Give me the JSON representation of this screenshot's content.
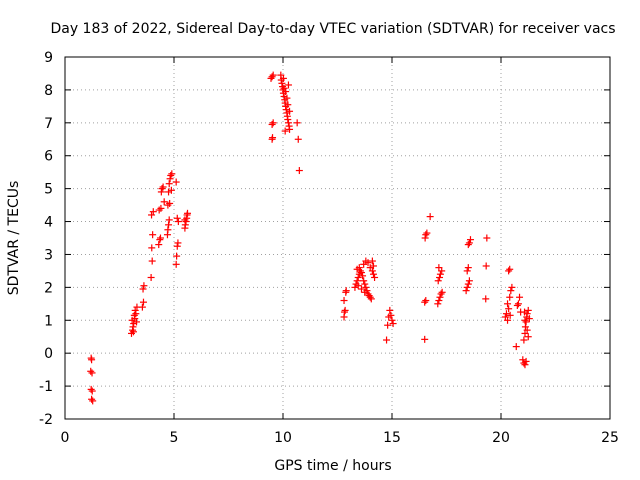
{
  "chart_data": {
    "type": "scatter",
    "title": "Day 183 of 2022, Sidereal Day-to-day VTEC variation (SDTVAR) for receiver vacs",
    "xlabel": "GPS time / hours",
    "ylabel": "SDTVAR / TECUs",
    "xlim": [
      0,
      25
    ],
    "ylim": [
      -2,
      9
    ],
    "xticks": [
      0,
      5,
      10,
      15,
      20,
      25
    ],
    "yticks": [
      -2,
      -1,
      0,
      1,
      2,
      3,
      4,
      5,
      6,
      7,
      8,
      9
    ],
    "xtick_labels": [
      "0",
      "5",
      "10",
      "15",
      "20",
      "25"
    ],
    "ytick_labels": [
      "-2",
      "-1",
      "0",
      "1",
      "2",
      "3",
      "4",
      "5",
      "6",
      "7",
      "8",
      "9"
    ],
    "grid": true,
    "marker": "+",
    "color": "#ff0000",
    "series": [
      {
        "name": "SDTVAR",
        "points": [
          [
            1.2,
            -0.15
          ],
          [
            1.22,
            -0.2
          ],
          [
            1.18,
            -0.55
          ],
          [
            1.24,
            -0.6
          ],
          [
            1.2,
            -1.1
          ],
          [
            1.25,
            -1.15
          ],
          [
            1.22,
            -1.4
          ],
          [
            1.27,
            -1.45
          ],
          [
            3.05,
            0.6
          ],
          [
            3.1,
            0.7
          ],
          [
            3.12,
            0.8
          ],
          [
            3.15,
            0.9
          ],
          [
            3.08,
            1.0
          ],
          [
            3.2,
            1.05
          ],
          [
            3.18,
            1.15
          ],
          [
            3.25,
            1.2
          ],
          [
            3.22,
            1.3
          ],
          [
            3.3,
            1.4
          ],
          [
            3.28,
            0.95
          ],
          [
            3.14,
            0.65
          ],
          [
            3.55,
            1.4
          ],
          [
            3.6,
            1.55
          ],
          [
            3.58,
            1.95
          ],
          [
            3.62,
            2.05
          ],
          [
            3.95,
            2.3
          ],
          [
            4.0,
            2.8
          ],
          [
            3.98,
            3.2
          ],
          [
            4.02,
            3.6
          ],
          [
            3.97,
            4.2
          ],
          [
            4.05,
            4.3
          ],
          [
            4.3,
            3.3
          ],
          [
            4.35,
            3.45
          ],
          [
            4.38,
            3.5
          ],
          [
            4.32,
            4.35
          ],
          [
            4.4,
            4.4
          ],
          [
            4.42,
            4.9
          ],
          [
            4.45,
            5.0
          ],
          [
            4.5,
            5.05
          ],
          [
            4.55,
            4.6
          ],
          [
            4.7,
            3.6
          ],
          [
            4.72,
            3.75
          ],
          [
            4.75,
            3.9
          ],
          [
            4.78,
            4.05
          ],
          [
            4.72,
            4.5
          ],
          [
            4.8,
            4.55
          ],
          [
            4.75,
            4.9
          ],
          [
            4.78,
            5.15
          ],
          [
            4.82,
            5.3
          ],
          [
            4.85,
            5.4
          ],
          [
            4.9,
            5.45
          ],
          [
            4.88,
            4.95
          ],
          [
            5.1,
            2.7
          ],
          [
            5.12,
            2.95
          ],
          [
            5.15,
            3.25
          ],
          [
            5.18,
            3.35
          ],
          [
            5.2,
            4.0
          ],
          [
            5.15,
            4.1
          ],
          [
            5.1,
            5.2
          ],
          [
            5.5,
            3.8
          ],
          [
            5.52,
            3.9
          ],
          [
            5.55,
            4.0
          ],
          [
            5.58,
            4.1
          ],
          [
            5.6,
            4.2
          ],
          [
            5.62,
            4.25
          ],
          [
            5.5,
            4.05
          ],
          [
            9.5,
            6.5
          ],
          [
            9.52,
            6.55
          ],
          [
            9.5,
            6.95
          ],
          [
            9.55,
            7.0
          ],
          [
            9.45,
            8.35
          ],
          [
            9.5,
            8.4
          ],
          [
            9.55,
            8.45
          ],
          [
            9.9,
            8.45
          ],
          [
            9.92,
            8.3
          ],
          [
            9.95,
            8.2
          ],
          [
            9.98,
            8.1
          ],
          [
            10.0,
            8.0
          ],
          [
            10.02,
            7.9
          ],
          [
            10.05,
            7.8
          ],
          [
            10.08,
            7.7
          ],
          [
            10.1,
            7.6
          ],
          [
            10.12,
            7.5
          ],
          [
            10.15,
            7.4
          ],
          [
            10.18,
            7.3
          ],
          [
            10.2,
            7.2
          ],
          [
            10.22,
            7.1
          ],
          [
            10.25,
            7.0
          ],
          [
            10.28,
            6.9
          ],
          [
            10.3,
            6.8
          ],
          [
            10.1,
            6.75
          ],
          [
            10.02,
            8.35
          ],
          [
            10.05,
            8.05
          ],
          [
            10.12,
            7.95
          ],
          [
            10.18,
            7.75
          ],
          [
            10.22,
            7.55
          ],
          [
            10.3,
            7.35
          ],
          [
            10.25,
            8.15
          ],
          [
            10.65,
            7.0
          ],
          [
            10.7,
            6.5
          ],
          [
            10.75,
            5.55
          ],
          [
            12.8,
            1.1
          ],
          [
            12.82,
            1.25
          ],
          [
            12.85,
            1.3
          ],
          [
            12.8,
            1.6
          ],
          [
            12.88,
            1.85
          ],
          [
            12.9,
            1.9
          ],
          [
            13.3,
            2.0
          ],
          [
            13.35,
            2.1
          ],
          [
            13.4,
            2.2
          ],
          [
            13.45,
            2.3
          ],
          [
            13.5,
            2.4
          ],
          [
            13.55,
            2.5
          ],
          [
            13.6,
            2.45
          ],
          [
            13.65,
            2.35
          ],
          [
            13.7,
            2.2
          ],
          [
            13.75,
            2.1
          ],
          [
            13.8,
            2.0
          ],
          [
            13.85,
            1.9
          ],
          [
            13.9,
            1.8
          ],
          [
            13.95,
            1.75
          ],
          [
            14.0,
            1.7
          ],
          [
            14.05,
            1.65
          ],
          [
            13.4,
            2.55
          ],
          [
            13.5,
            2.6
          ],
          [
            13.7,
            2.7
          ],
          [
            13.8,
            2.8
          ],
          [
            13.9,
            2.75
          ],
          [
            14.0,
            2.6
          ],
          [
            14.1,
            2.5
          ],
          [
            14.15,
            2.4
          ],
          [
            14.2,
            2.3
          ],
          [
            13.6,
            1.95
          ],
          [
            13.75,
            1.85
          ],
          [
            14.1,
            2.8
          ],
          [
            14.15,
            2.65
          ],
          [
            13.45,
            2.05
          ],
          [
            14.75,
            0.4
          ],
          [
            14.8,
            0.85
          ],
          [
            14.85,
            1.1
          ],
          [
            14.9,
            1.3
          ],
          [
            15.0,
            1.0
          ],
          [
            15.05,
            0.9
          ],
          [
            14.95,
            1.15
          ],
          [
            16.5,
            0.42
          ],
          [
            16.5,
            1.55
          ],
          [
            16.55,
            1.6
          ],
          [
            16.52,
            3.5
          ],
          [
            16.55,
            3.6
          ],
          [
            16.6,
            3.65
          ],
          [
            16.75,
            4.15
          ],
          [
            17.1,
            1.5
          ],
          [
            17.15,
            1.6
          ],
          [
            17.2,
            1.7
          ],
          [
            17.25,
            1.8
          ],
          [
            17.3,
            1.85
          ],
          [
            17.12,
            2.2
          ],
          [
            17.18,
            2.3
          ],
          [
            17.22,
            2.4
          ],
          [
            17.28,
            2.5
          ],
          [
            17.15,
            2.6
          ],
          [
            18.4,
            1.9
          ],
          [
            18.45,
            2.0
          ],
          [
            18.5,
            2.1
          ],
          [
            18.55,
            2.2
          ],
          [
            18.45,
            2.5
          ],
          [
            18.5,
            2.6
          ],
          [
            18.55,
            3.35
          ],
          [
            18.6,
            3.45
          ],
          [
            18.5,
            3.3
          ],
          [
            19.3,
            1.65
          ],
          [
            19.32,
            2.65
          ],
          [
            19.35,
            3.5
          ],
          [
            20.2,
            1.1
          ],
          [
            20.25,
            1.2
          ],
          [
            20.3,
            1.0
          ],
          [
            20.35,
            1.35
          ],
          [
            20.4,
            1.7
          ],
          [
            20.45,
            1.9
          ],
          [
            20.5,
            2.0
          ],
          [
            20.35,
            2.5
          ],
          [
            20.4,
            2.55
          ],
          [
            20.3,
            1.5
          ],
          [
            20.42,
            1.15
          ],
          [
            20.7,
            0.2
          ],
          [
            20.75,
            1.45
          ],
          [
            20.8,
            1.5
          ],
          [
            20.85,
            1.7
          ],
          [
            20.9,
            1.25
          ],
          [
            21.0,
            -0.2
          ],
          [
            21.05,
            -0.3
          ],
          [
            21.1,
            -0.35
          ],
          [
            21.15,
            -0.25
          ],
          [
            21.05,
            0.4
          ],
          [
            21.1,
            0.6
          ],
          [
            21.12,
            0.8
          ],
          [
            21.15,
            0.95
          ],
          [
            21.18,
            1.1
          ],
          [
            21.2,
            1.2
          ],
          [
            21.25,
            1.3
          ],
          [
            21.1,
            1.0
          ],
          [
            21.2,
            0.7
          ],
          [
            21.25,
            0.5
          ],
          [
            21.08,
            1.25
          ],
          [
            21.3,
            1.05
          ]
        ]
      }
    ]
  }
}
